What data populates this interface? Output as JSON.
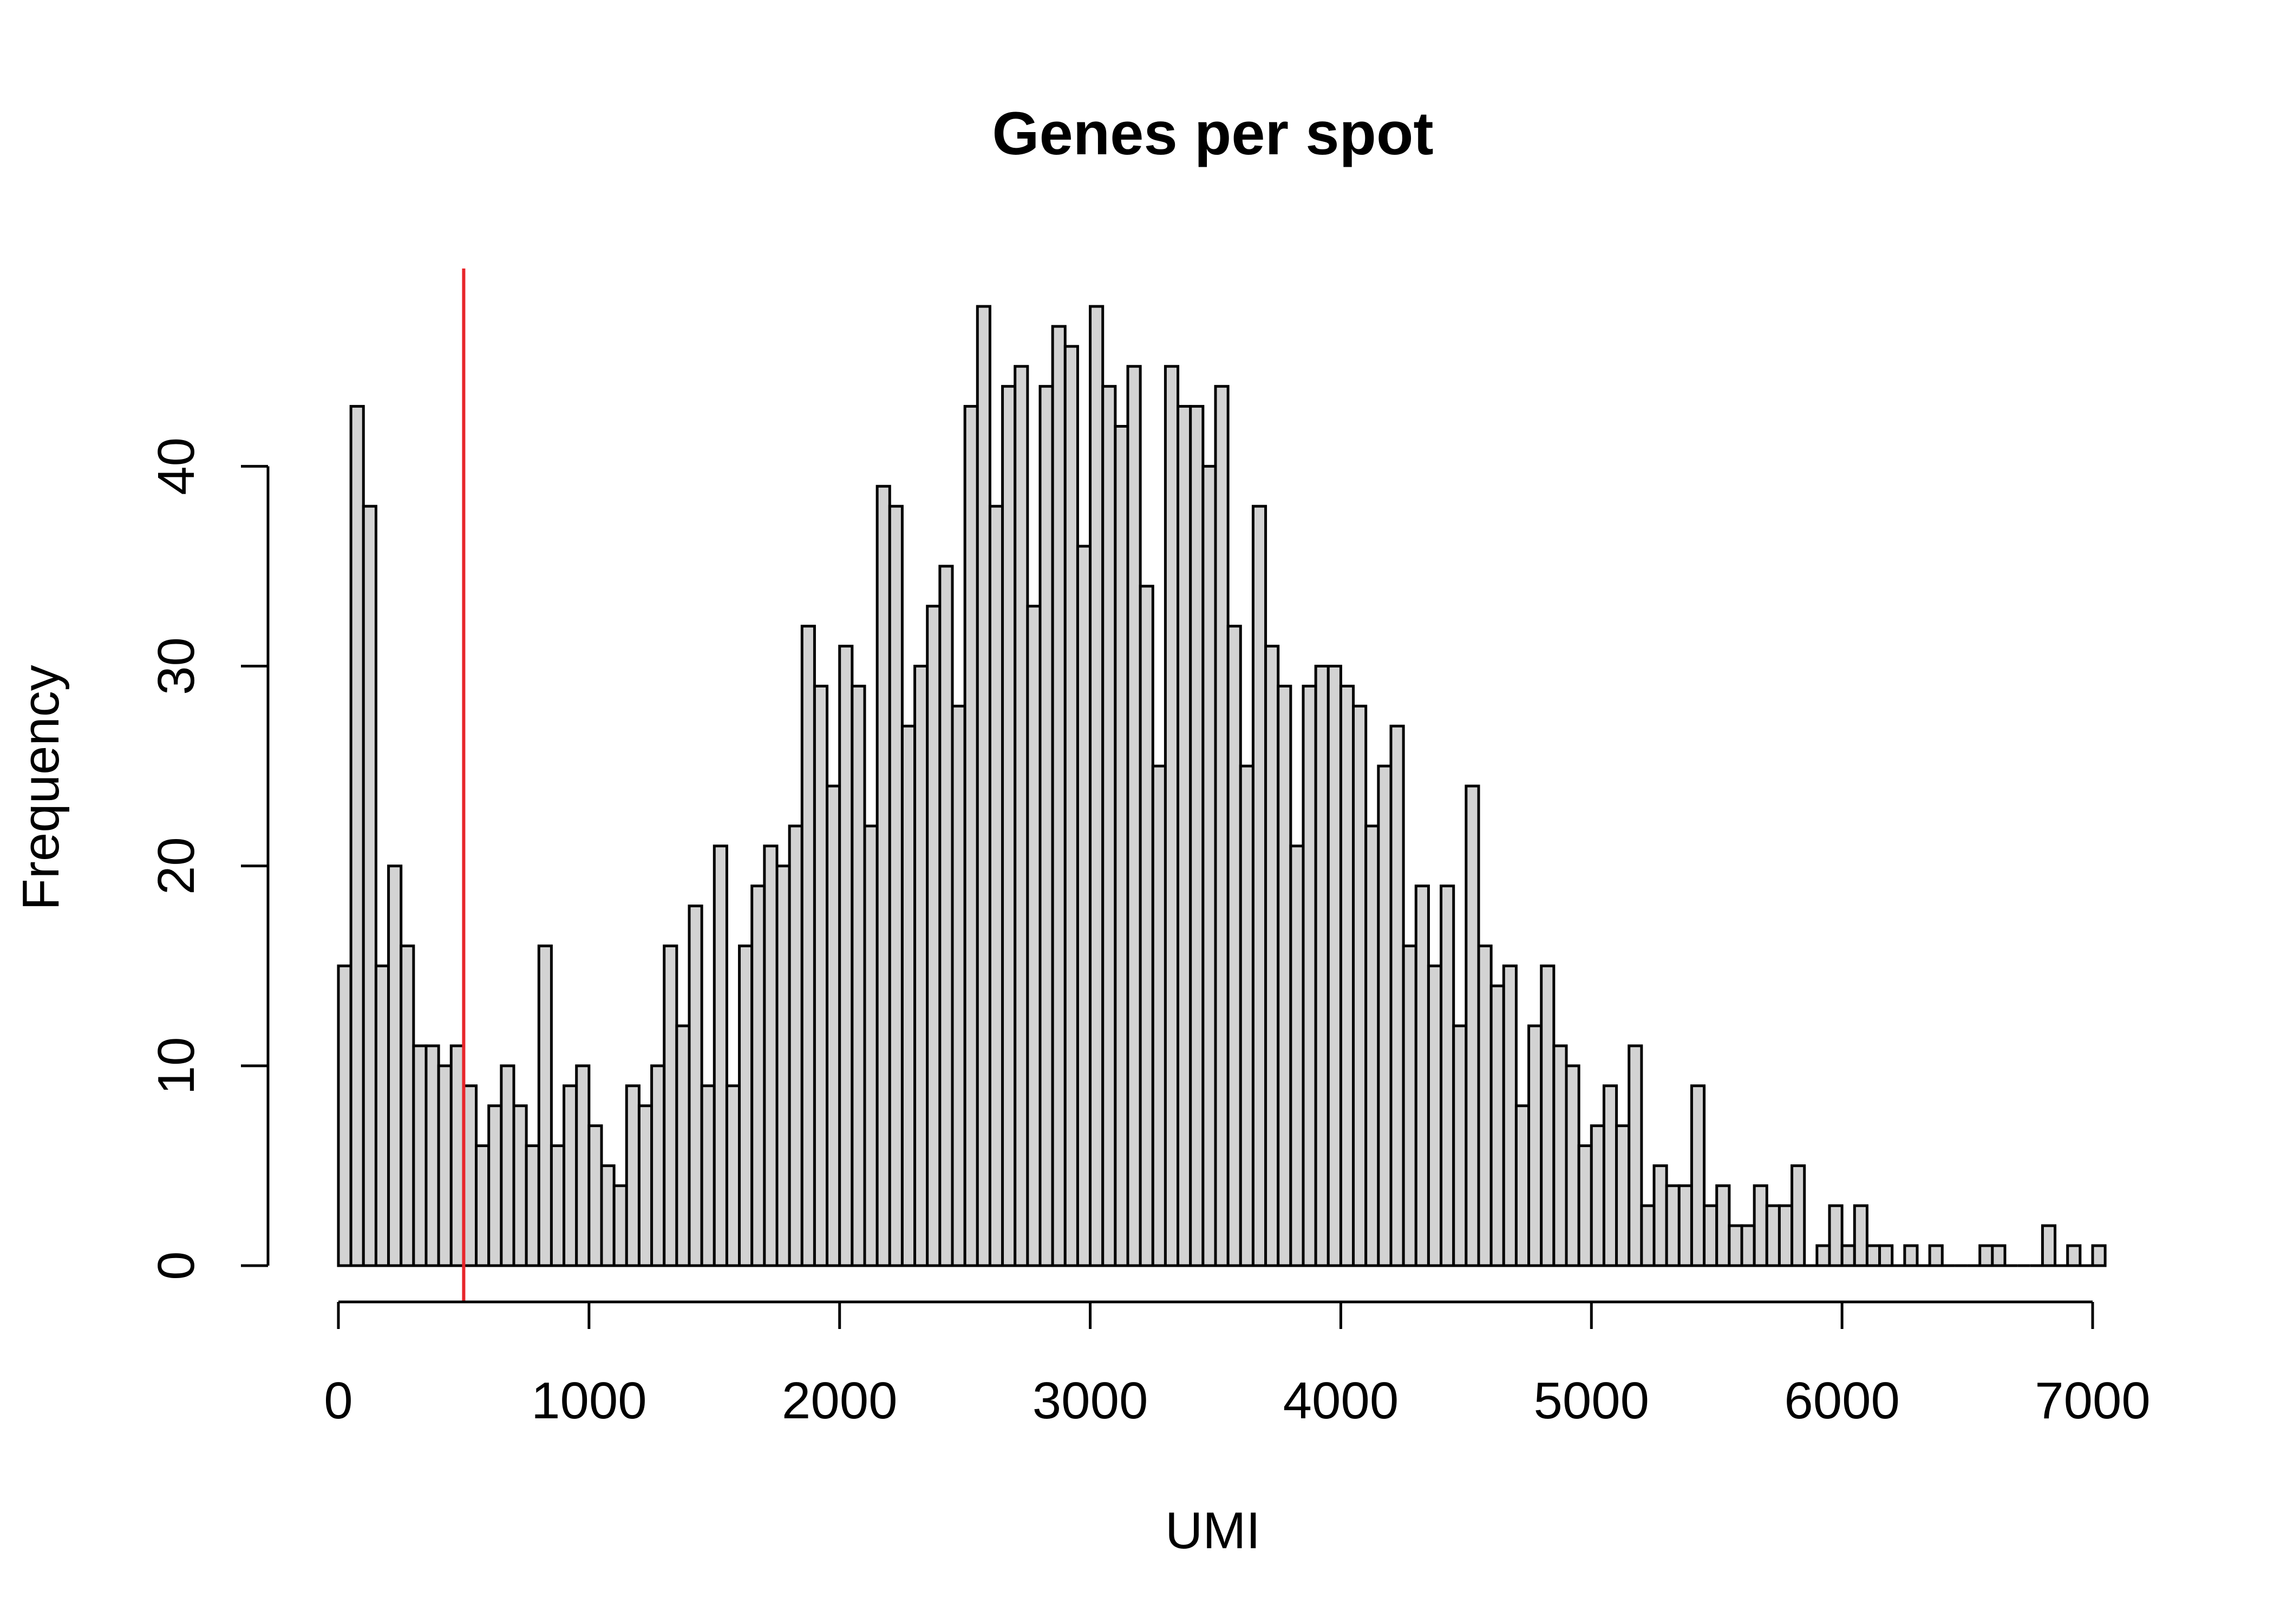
{
  "chart_data": {
    "type": "bar",
    "title": "Genes per spot",
    "xlabel": "UMI",
    "ylabel": "Frequency",
    "xlim": [
      0,
      7000
    ],
    "ylim": [
      0,
      48
    ],
    "x_ticks": [
      0,
      1000,
      2000,
      3000,
      4000,
      5000,
      6000,
      7000
    ],
    "y_ticks": [
      0,
      10,
      20,
      30,
      40
    ],
    "bin_width": 50,
    "bin_start": 0,
    "values": [
      15,
      43,
      38,
      15,
      20,
      16,
      11,
      11,
      10,
      11,
      9,
      6,
      8,
      10,
      8,
      6,
      16,
      6,
      9,
      10,
      7,
      5,
      4,
      9,
      8,
      10,
      16,
      12,
      18,
      9,
      21,
      9,
      16,
      19,
      21,
      20,
      22,
      32,
      29,
      24,
      31,
      29,
      22,
      39,
      38,
      27,
      30,
      33,
      35,
      28,
      43,
      48,
      38,
      44,
      45,
      33,
      44,
      47,
      46,
      36,
      48,
      44,
      42,
      45,
      34,
      25,
      45,
      43,
      43,
      40,
      44,
      32,
      25,
      38,
      31,
      29,
      21,
      29,
      30,
      30,
      29,
      28,
      22,
      25,
      27,
      16,
      19,
      15,
      19,
      12,
      24,
      16,
      14,
      15,
      8,
      12,
      15,
      11,
      10,
      6,
      7,
      9,
      7,
      11,
      3,
      5,
      4,
      4,
      9,
      3,
      4,
      2,
      2,
      4,
      3,
      3,
      5,
      0,
      1,
      3,
      1,
      3,
      1,
      1,
      0,
      1,
      0,
      1,
      0,
      0,
      0,
      1,
      1,
      0,
      0,
      0,
      2,
      0,
      1,
      0,
      1
    ],
    "bar_color": "#d3d3d3",
    "reference_line": {
      "x": 500,
      "color": "#e8262b"
    },
    "grid": false
  }
}
